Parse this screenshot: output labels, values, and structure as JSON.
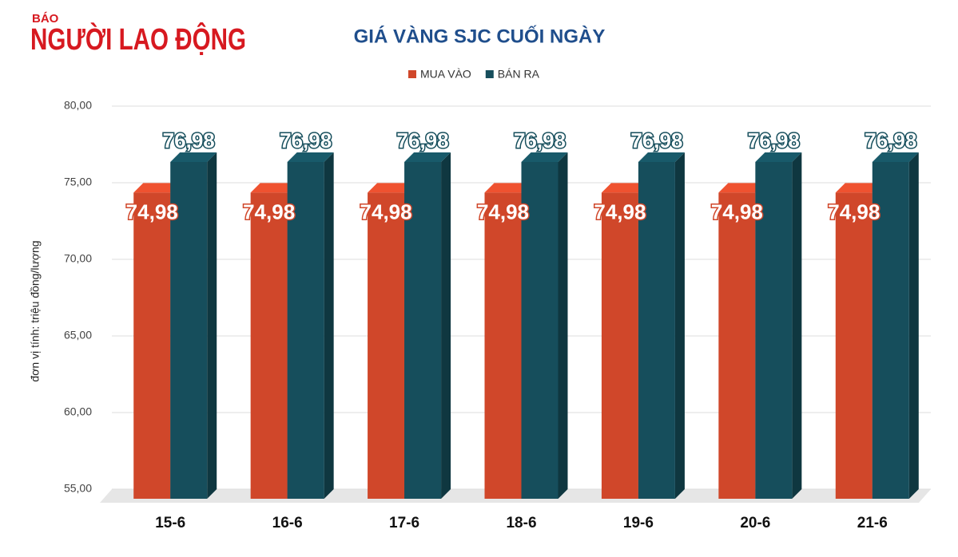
{
  "logo": {
    "small": "BÁO",
    "big": "NGƯỜI LAO ĐỘNG"
  },
  "chart_data": {
    "type": "bar3d",
    "title": "GIÁ VÀNG SJC CUỐI NGÀY",
    "y_label": "đơn vị tính: triệu đồng/lượng",
    "categories": [
      "15-6",
      "16-6",
      "17-6",
      "18-6",
      "19-6",
      "20-6",
      "21-6"
    ],
    "series": [
      {
        "name": "MUA VÀO",
        "color": "#d0472a",
        "values": [
          74.98,
          74.98,
          74.98,
          74.98,
          74.98,
          74.98,
          74.98
        ],
        "value_labels": [
          "74,98",
          "74,98",
          "74,98",
          "74,98",
          "74,98",
          "74,98",
          "74,98"
        ]
      },
      {
        "name": "BÁN RA",
        "color": "#164e5c",
        "values": [
          76.98,
          76.98,
          76.98,
          76.98,
          76.98,
          76.98,
          76.98
        ],
        "value_labels": [
          "76,98",
          "76,98",
          "76,98",
          "76,98",
          "76,98",
          "76,98",
          "76,98"
        ]
      }
    ],
    "ylim": [
      55,
      80
    ],
    "yticks": [
      {
        "value": 55,
        "label": "55,00"
      },
      {
        "value": 60,
        "label": "60,00"
      },
      {
        "value": 65,
        "label": "65,00"
      },
      {
        "value": 70,
        "label": "70,00"
      },
      {
        "value": 75,
        "label": "75,00"
      },
      {
        "value": 80,
        "label": "80,00"
      }
    ],
    "grid": true,
    "legend": "top"
  }
}
